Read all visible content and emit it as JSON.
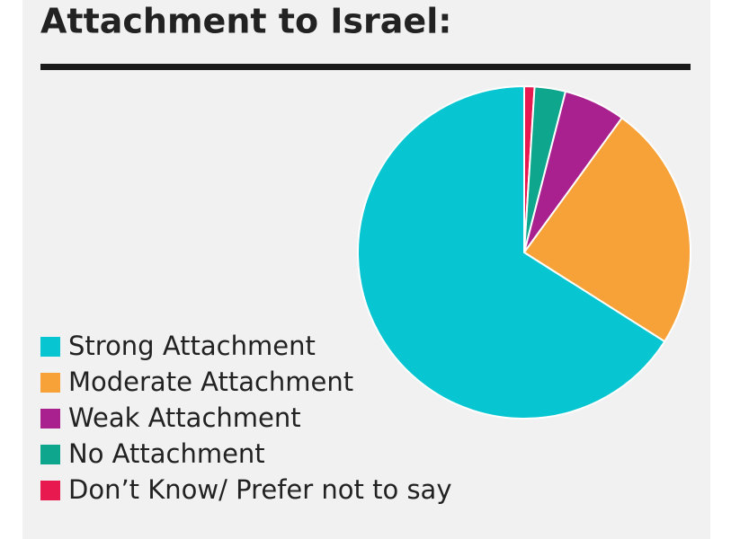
{
  "chart_data": {
    "type": "pie",
    "title": "Attachment to Israel:",
    "series": [
      {
        "name": "Strong Attachment",
        "color": "#08c6d1",
        "values": [
          66
        ]
      },
      {
        "name": "Moderate Attachment",
        "color": "#f7a239",
        "values": [
          24
        ]
      },
      {
        "name": "Weak Attachment",
        "color": "#a8218e",
        "values": [
          6
        ]
      },
      {
        "name": "No Attachment",
        "color": "#0ea68c",
        "values": [
          3
        ]
      },
      {
        "name": "Don’t Know/ Prefer not to say",
        "color": "#e8194f",
        "values": [
          1
        ]
      }
    ]
  }
}
